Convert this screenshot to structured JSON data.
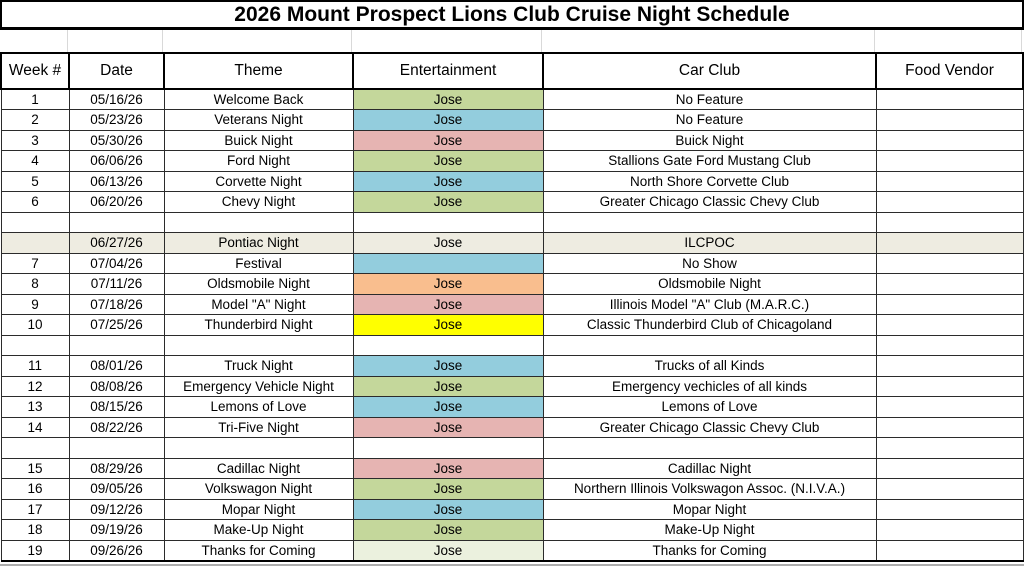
{
  "title": "2026 Mount Prospect Lions Club Cruise Night Schedule",
  "colors": {
    "green": "#C4D79B",
    "blue": "#93CDDD",
    "pink": "#E6B4B2",
    "orange": "#F9BE8E",
    "yellow": "#FFFF00",
    "pale_green": "#EBF1DE",
    "row_shade": "#EEECE1"
  },
  "table": {
    "columns": [
      "Week #",
      "Date",
      "Theme",
      "Entertainment",
      "Car Club",
      "Food Vendor"
    ],
    "rows": [
      {
        "week": "1",
        "date": "05/16/26",
        "theme": "Welcome Back",
        "entertainment": "Jose",
        "ent_fill": "green",
        "car_club": "No Feature",
        "food_vendor": "",
        "row_fill": ""
      },
      {
        "week": "2",
        "date": "05/23/26",
        "theme": "Veterans Night",
        "entertainment": "Jose",
        "ent_fill": "blue",
        "car_club": "No Feature",
        "food_vendor": "",
        "row_fill": ""
      },
      {
        "week": "3",
        "date": "05/30/26",
        "theme": "Buick Night",
        "entertainment": "Jose",
        "ent_fill": "pink",
        "car_club": "Buick Night",
        "food_vendor": "",
        "row_fill": ""
      },
      {
        "week": "4",
        "date": "06/06/26",
        "theme": "Ford Night",
        "entertainment": "Jose",
        "ent_fill": "green",
        "car_club": "Stallions Gate Ford Mustang Club",
        "food_vendor": "",
        "row_fill": ""
      },
      {
        "week": "5",
        "date": "06/13/26",
        "theme": "Corvette Night",
        "entertainment": "Jose",
        "ent_fill": "blue",
        "car_club": "North Shore Corvette Club",
        "food_vendor": "",
        "row_fill": ""
      },
      {
        "week": "6",
        "date": "06/20/26",
        "theme": "Chevy Night",
        "entertainment": "Jose",
        "ent_fill": "green",
        "car_club": "Greater Chicago Classic Chevy Club",
        "food_vendor": "",
        "row_fill": ""
      },
      {
        "week": "",
        "date": "",
        "theme": "",
        "entertainment": "",
        "ent_fill": "",
        "car_club": "",
        "food_vendor": "",
        "row_fill": ""
      },
      {
        "week": "",
        "date": "06/27/26",
        "theme": "Pontiac Night",
        "entertainment": "Jose",
        "ent_fill": "",
        "car_club": "ILCPOC",
        "food_vendor": "",
        "row_fill": "row_shade"
      },
      {
        "week": "7",
        "date": "07/04/26",
        "theme": "Festival",
        "entertainment": "",
        "ent_fill": "blue",
        "car_club": "No Show",
        "food_vendor": "",
        "row_fill": ""
      },
      {
        "week": "8",
        "date": "07/11/26",
        "theme": "Oldsmobile Night",
        "entertainment": "Jose",
        "ent_fill": "orange",
        "car_club": "Oldsmobile Night",
        "food_vendor": "",
        "row_fill": ""
      },
      {
        "week": "9",
        "date": "07/18/26",
        "theme": "Model \"A\" Night",
        "entertainment": "Jose",
        "ent_fill": "pink",
        "car_club": "Illinois Model \"A\" Club (M.A.R.C.)",
        "food_vendor": "",
        "row_fill": ""
      },
      {
        "week": "10",
        "date": "07/25/26",
        "theme": "Thunderbird Night",
        "entertainment": "Jose",
        "ent_fill": "yellow",
        "car_club": "Classic Thunderbird Club of Chicagoland",
        "food_vendor": "",
        "row_fill": ""
      },
      {
        "week": "",
        "date": "",
        "theme": "",
        "entertainment": "",
        "ent_fill": "",
        "car_club": "",
        "food_vendor": "",
        "row_fill": ""
      },
      {
        "week": "11",
        "date": "08/01/26",
        "theme": "Truck Night",
        "entertainment": "Jose",
        "ent_fill": "blue",
        "car_club": "Trucks of all Kinds",
        "food_vendor": "",
        "row_fill": ""
      },
      {
        "week": "12",
        "date": "08/08/26",
        "theme": "Emergency Vehicle Night",
        "entertainment": "Jose",
        "ent_fill": "green",
        "car_club": "Emergency vechicles of all kinds",
        "food_vendor": "",
        "row_fill": ""
      },
      {
        "week": "13",
        "date": "08/15/26",
        "theme": "Lemons of Love",
        "entertainment": "Jose",
        "ent_fill": "blue",
        "car_club": "Lemons of Love",
        "food_vendor": "",
        "row_fill": ""
      },
      {
        "week": "14",
        "date": "08/22/26",
        "theme": "Tri-Five Night",
        "entertainment": "Jose",
        "ent_fill": "pink",
        "car_club": "Greater Chicago Classic Chevy Club",
        "food_vendor": "",
        "row_fill": ""
      },
      {
        "week": "",
        "date": "",
        "theme": "",
        "entertainment": "",
        "ent_fill": "",
        "car_club": "",
        "food_vendor": "",
        "row_fill": ""
      },
      {
        "week": "15",
        "date": "08/29/26",
        "theme": "Cadillac Night",
        "entertainment": "Jose",
        "ent_fill": "pink",
        "car_club": "Cadillac Night",
        "food_vendor": "",
        "row_fill": ""
      },
      {
        "week": "16",
        "date": "09/05/26",
        "theme": "Volkswagon Night",
        "entertainment": "Jose",
        "ent_fill": "green",
        "car_club": "Northern Illinois Volkswagon Assoc. (N.I.V.A.)",
        "food_vendor": "",
        "row_fill": ""
      },
      {
        "week": "17",
        "date": "09/12/26",
        "theme": "Mopar Night",
        "entertainment": "Jose",
        "ent_fill": "blue",
        "car_club": "Mopar Night",
        "food_vendor": "",
        "row_fill": ""
      },
      {
        "week": "18",
        "date": "09/19/26",
        "theme": "Make-Up Night",
        "entertainment": "Jose",
        "ent_fill": "green",
        "car_club": "Make-Up Night",
        "food_vendor": "",
        "row_fill": ""
      },
      {
        "week": "19",
        "date": "09/26/26",
        "theme": "Thanks for Coming",
        "entertainment": "Jose",
        "ent_fill": "pale_green",
        "car_club": "Thanks for Coming",
        "food_vendor": "",
        "row_fill": ""
      }
    ]
  }
}
